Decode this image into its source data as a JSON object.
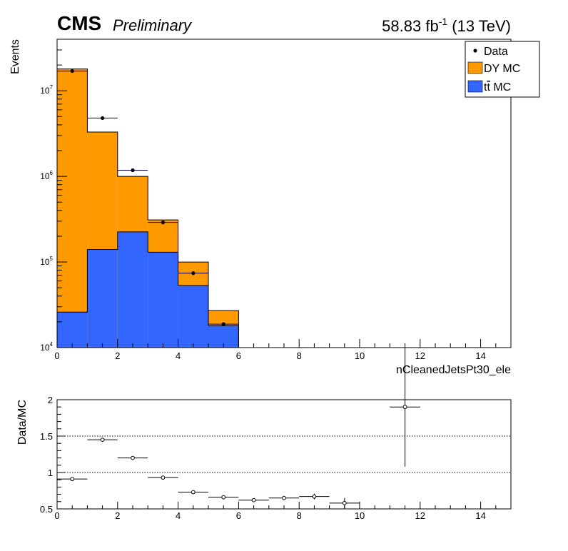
{
  "header": {
    "experiment": "CMS",
    "status": "Preliminary",
    "lumi_value": "58.83 fb",
    "lumi_exp": "-1",
    "lumi_energy": " (13 TeV)"
  },
  "legend": {
    "data_label": "Data",
    "dy_label": "DY MC",
    "tt_label_prefix": "t",
    "tt_label_bar": "t",
    "tt_label_suffix": " MC"
  },
  "colors": {
    "dy": "#ff9900",
    "tt": "#3366ff",
    "data": "#000000",
    "errbar_main": "#00007a"
  },
  "chart_data": [
    {
      "type": "bar",
      "subtype": "stacked-histogram",
      "xlabel": "nCleanedJetsPt30_ele",
      "ylabel": "Events",
      "log_y": true,
      "xlim": [
        0,
        15
      ],
      "ylim": [
        10000,
        40000000
      ],
      "x_ticks": [
        "0",
        "2",
        "4",
        "6",
        "8",
        "10",
        "12",
        "14"
      ],
      "y_ticks": [
        {
          "value": 10000,
          "label": "10",
          "exp": "4"
        },
        {
          "value": 100000,
          "label": "10",
          "exp": "5"
        },
        {
          "value": 1000000,
          "label": "10",
          "exp": "6"
        },
        {
          "value": 10000000,
          "label": "10",
          "exp": "7"
        }
      ],
      "bin_edges": [
        0,
        1,
        2,
        3,
        4,
        5,
        6
      ],
      "series": [
        {
          "name": "tt MC",
          "values": [
            26000,
            140000,
            225000,
            130000,
            53000,
            18000
          ]
        },
        {
          "name": "DY MC",
          "total_values": [
            18000000,
            3300000,
            1000000,
            310000,
            100000,
            27000
          ]
        },
        {
          "name": "Data",
          "x": [
            0.5,
            1.5,
            2.5,
            3.5,
            4.5,
            5.5
          ],
          "values": [
            17000000,
            4800000,
            1180000,
            290000,
            74000,
            18800
          ]
        }
      ]
    },
    {
      "type": "scatter",
      "subtype": "ratio",
      "ylabel": "Data/MC",
      "xlim": [
        0,
        15
      ],
      "ylim": [
        0.5,
        2
      ],
      "x_ticks": [
        "0",
        "2",
        "4",
        "6",
        "8",
        "10",
        "12",
        "14"
      ],
      "y_ticks": [
        "0.5",
        "1",
        "1.5",
        "2"
      ],
      "reference_lines": [
        1,
        1.5
      ],
      "x": [
        0.5,
        1.5,
        2.5,
        3.5,
        4.5,
        5.5,
        6.5,
        7.5,
        8.5,
        9.5,
        11.5
      ],
      "values": [
        0.91,
        1.45,
        1.2,
        0.93,
        0.73,
        0.66,
        0.62,
        0.65,
        0.67,
        0.58,
        1.9
      ],
      "errors": [
        0,
        0,
        0,
        0,
        0.01,
        0.01,
        0.01,
        0.02,
        0.04,
        0.07,
        0.82
      ]
    }
  ]
}
